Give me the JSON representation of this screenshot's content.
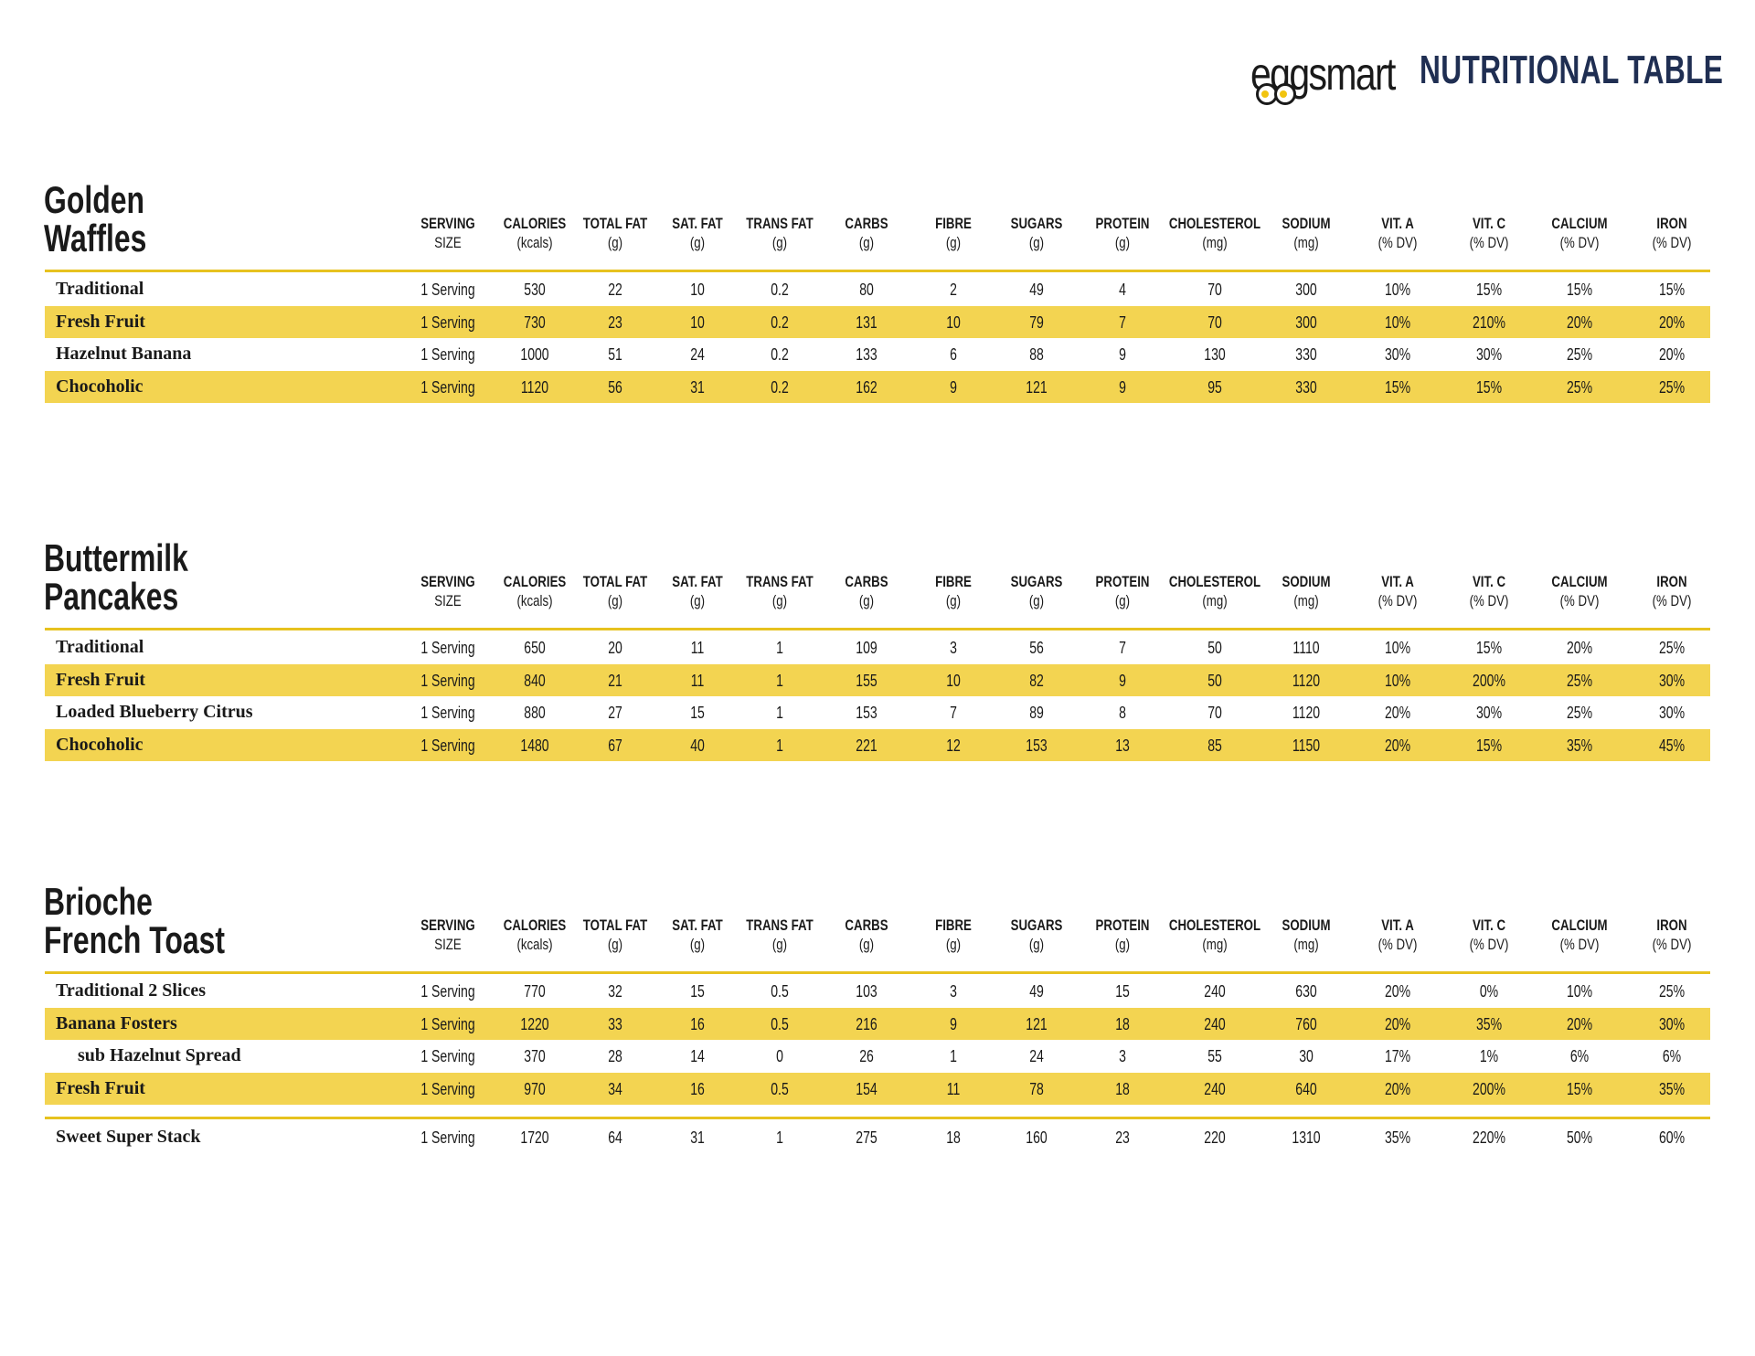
{
  "header": {
    "logo_text": "eggsmart",
    "title": "NUTRITIONAL TABLE"
  },
  "columns": [
    {
      "label": "SERVING",
      "unit": "SIZE"
    },
    {
      "label": "CALORIES",
      "unit": "(kcals)"
    },
    {
      "label": "TOTAL FAT",
      "unit": "(g)"
    },
    {
      "label": "SAT. FAT",
      "unit": "(g)"
    },
    {
      "label": "TRANS FAT",
      "unit": "(g)"
    },
    {
      "label": "CARBS",
      "unit": "(g)"
    },
    {
      "label": "FIBRE",
      "unit": "(g)"
    },
    {
      "label": "SUGARS",
      "unit": "(g)"
    },
    {
      "label": "PROTEIN",
      "unit": "(g)"
    },
    {
      "label": "CHOLESTEROL",
      "unit": "(mg)"
    },
    {
      "label": "SODIUM",
      "unit": "(mg)"
    },
    {
      "label": "VIT. A",
      "unit": "(% DV)"
    },
    {
      "label": "VIT. C",
      "unit": "(% DV)"
    },
    {
      "label": "CALCIUM",
      "unit": "(% DV)"
    },
    {
      "label": "IRON",
      "unit": "(% DV)"
    }
  ],
  "highlight_color": "#f3d451",
  "rule_color": "#e7c21f",
  "sections": [
    {
      "title_line1": "Golden",
      "title_line2": "Waffles",
      "rows": [
        {
          "name": "Traditional",
          "values": [
            "1 Serving",
            "530",
            "22",
            "10",
            "0.2",
            "80",
            "2",
            "49",
            "4",
            "70",
            "300",
            "10%",
            "15%",
            "15%",
            "15%"
          ]
        },
        {
          "name": "Fresh Fruit",
          "values": [
            "1 Serving",
            "730",
            "23",
            "10",
            "0.2",
            "131",
            "10",
            "79",
            "7",
            "70",
            "300",
            "10%",
            "210%",
            "20%",
            "20%"
          ]
        },
        {
          "name": "Hazelnut Banana",
          "values": [
            "1 Serving",
            "1000",
            "51",
            "24",
            "0.2",
            "133",
            "6",
            "88",
            "9",
            "130",
            "330",
            "30%",
            "30%",
            "25%",
            "20%"
          ]
        },
        {
          "name": "Chocoholic",
          "values": [
            "1 Serving",
            "1120",
            "56",
            "31",
            "0.2",
            "162",
            "9",
            "121",
            "9",
            "95",
            "330",
            "15%",
            "15%",
            "25%",
            "25%"
          ]
        }
      ]
    },
    {
      "title_line1": "Buttermilk",
      "title_line2": "Pancakes",
      "rows": [
        {
          "name": "Traditional",
          "values": [
            "1 Serving",
            "650",
            "20",
            "11",
            "1",
            "109",
            "3",
            "56",
            "7",
            "50",
            "1110",
            "10%",
            "15%",
            "20%",
            "25%"
          ]
        },
        {
          "name": "Fresh Fruit",
          "values": [
            "1 Serving",
            "840",
            "21",
            "11",
            "1",
            "155",
            "10",
            "82",
            "9",
            "50",
            "1120",
            "10%",
            "200%",
            "25%",
            "30%"
          ]
        },
        {
          "name": "Loaded Blueberry Citrus",
          "values": [
            "1 Serving",
            "880",
            "27",
            "15",
            "1",
            "153",
            "7",
            "89",
            "8",
            "70",
            "1120",
            "20%",
            "30%",
            "25%",
            "30%"
          ]
        },
        {
          "name": "Chocoholic",
          "values": [
            "1 Serving",
            "1480",
            "67",
            "40",
            "1",
            "221",
            "12",
            "153",
            "13",
            "85",
            "1150",
            "20%",
            "15%",
            "35%",
            "45%"
          ]
        }
      ]
    },
    {
      "title_line1": "Brioche",
      "title_line2": "French Toast",
      "rows": [
        {
          "name": "Traditional 2 Slices",
          "values": [
            "1 Serving",
            "770",
            "32",
            "15",
            "0.5",
            "103",
            "3",
            "49",
            "15",
            "240",
            "630",
            "20%",
            "0%",
            "10%",
            "25%"
          ]
        },
        {
          "name": "Banana Fosters",
          "values": [
            "1 Serving",
            "1220",
            "33",
            "16",
            "0.5",
            "216",
            "9",
            "121",
            "18",
            "240",
            "760",
            "20%",
            "35%",
            "20%",
            "30%"
          ]
        },
        {
          "name": "sub Hazelnut Spread",
          "indent": true,
          "values": [
            "1 Serving",
            "370",
            "28",
            "14",
            "0",
            "26",
            "1",
            "24",
            "3",
            "55",
            "30",
            "17%",
            "1%",
            "6%",
            "6%"
          ]
        },
        {
          "name": "Fresh Fruit",
          "values": [
            "1 Serving",
            "970",
            "34",
            "16",
            "0.5",
            "154",
            "11",
            "78",
            "18",
            "240",
            "640",
            "20%",
            "200%",
            "15%",
            "35%"
          ]
        }
      ],
      "extra_rows": [
        {
          "name": "Sweet Super Stack",
          "values": [
            "1 Serving",
            "1720",
            "64",
            "31",
            "1",
            "275",
            "18",
            "160",
            "23",
            "220",
            "1310",
            "35%",
            "220%",
            "50%",
            "60%"
          ]
        }
      ]
    }
  ]
}
